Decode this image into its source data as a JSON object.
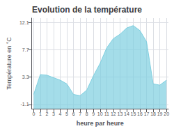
{
  "chart_data": {
    "type": "line",
    "title": "Evolution de la température",
    "xlabel": "heure par heure",
    "ylabel": "Température en °C",
    "x": [
      0,
      1,
      2,
      3,
      4,
      5,
      6,
      7,
      8,
      9,
      10,
      11,
      12,
      13,
      14,
      15,
      16,
      17,
      18,
      19,
      20
    ],
    "values": [
      0.5,
      3.7,
      3.6,
      3.2,
      2.8,
      2.2,
      0.5,
      0.3,
      1.2,
      3.5,
      5.5,
      8.0,
      9.5,
      10.2,
      11.2,
      11.6,
      10.8,
      9.0,
      2.2,
      2.0,
      2.8
    ],
    "color": "#7ecfe0",
    "xlim": [
      -0.3,
      20.3
    ],
    "xticks": [
      0,
      1,
      2,
      3,
      4,
      5,
      6,
      7,
      8,
      9,
      10,
      11,
      12,
      13,
      14,
      15,
      16,
      17,
      18,
      19,
      20
    ],
    "ylim": [
      -1.8,
      12.8
    ],
    "yticks": [
      -1.1,
      3.3,
      7.7,
      12.1
    ],
    "grid": true
  }
}
